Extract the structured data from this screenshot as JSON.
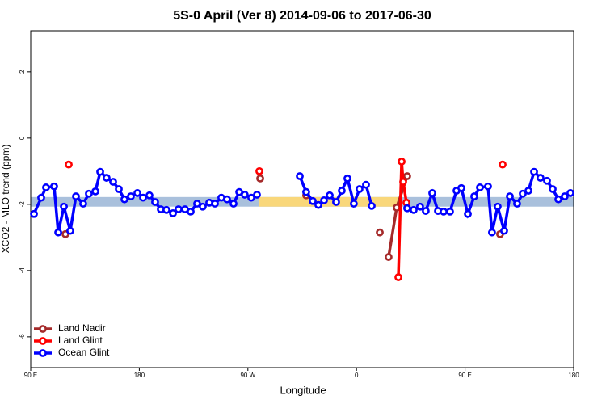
{
  "chart_data": {
    "type": "line",
    "title": "5S-0 April (Ver 8)   2014-09-06 to 2017-06-30",
    "x_label": "Longitude",
    "y_label": "XCO2 - MLO trend (ppm)",
    "xlim": [
      90,
      540
    ],
    "ylim": [
      -6.93,
      3.24
    ],
    "xticks": [
      {
        "value": 90,
        "label": "90 E"
      },
      180,
      {
        "value": 270,
        "label": "90 W"
      },
      {
        "value": 360,
        "label": "0"
      },
      {
        "value": 450,
        "label": "90 E"
      },
      {
        "value": 540,
        "label": "180"
      }
    ],
    "yticks": [
      -6,
      -4,
      -2,
      0,
      2
    ],
    "band": {
      "ylim": [
        -2.07,
        -1.78
      ],
      "color": "#a9c0dc",
      "land_color": "#f9d77a",
      "land_spans": [
        [
          279,
          398
        ]
      ]
    },
    "legend": "bottom-left",
    "series": [
      {
        "name": "Land Nadir",
        "color": "#a52a2a",
        "x": [
          118.8,
          null,
          280.2,
          null,
          318.3,
          null,
          379.3,
          null,
          386.6,
          393.3,
          402.0,
          null,
          479.0
        ],
        "values": [
          -2.9,
          null,
          -1.22,
          null,
          -1.73,
          null,
          -2.85,
          null,
          -3.59,
          -2.1,
          -1.15,
          null,
          -2.9
        ]
      },
      {
        "name": "Land Glint",
        "color": "#ff0000",
        "x": [
          121.5,
          null,
          279.5,
          null,
          394.7,
          397.4,
          398.7,
          401.4,
          null,
          481.1
        ],
        "values": [
          -0.8,
          null,
          -1.0,
          null,
          -4.2,
          -0.71,
          -1.32,
          -1.95,
          null,
          -0.8
        ]
      },
      {
        "name": "Ocean Glint",
        "color": "#0000ff",
        "x": [
          92.7,
          98.7,
          102.7,
          109.4,
          112.8,
          117.5,
          122.8,
          127.5,
          133.5,
          138.2,
          143.6,
          147.6,
          152.9,
          158.3,
          163.0,
          167.7,
          173.0,
          178.4,
          183.1,
          188.4,
          193.1,
          197.8,
          202.5,
          207.9,
          212.5,
          217.9,
          222.6,
          227.9,
          232.6,
          238.0,
          242.7,
          248.0,
          252.7,
          258.1,
          262.8,
          267.4,
          272.8,
          277.5,
          null,
          313.0,
          318.3,
          323.7,
          328.4,
          333.1,
          337.8,
          343.1,
          347.8,
          352.5,
          357.8,
          362.5,
          367.9,
          372.6,
          null,
          402.0,
          407.4,
          412.7,
          417.4,
          422.8,
          427.5,
          432.2,
          437.5,
          442.9,
          446.9,
          452.3,
          457.6,
          462.3,
          469.0,
          472.3,
          477.0,
          482.4,
          487.1,
          493.1,
          497.8,
          502.5,
          507.2,
          512.5,
          517.9,
          522.6,
          527.3,
          532.6,
          537.3
        ],
        "values": [
          -2.29,
          -1.8,
          -1.49,
          -1.46,
          -2.85,
          -2.07,
          -2.8,
          -1.76,
          -1.98,
          -1.68,
          -1.61,
          -1.02,
          -1.2,
          -1.32,
          -1.54,
          -1.85,
          -1.76,
          -1.66,
          -1.8,
          -1.73,
          -1.93,
          -2.15,
          -2.17,
          -2.27,
          -2.15,
          -2.15,
          -2.22,
          -1.98,
          -2.07,
          -1.95,
          -1.98,
          -1.8,
          -1.85,
          -1.98,
          -1.63,
          -1.71,
          -1.8,
          -1.71,
          null,
          -1.15,
          -1.63,
          -1.9,
          -2.02,
          -1.88,
          -1.73,
          -1.93,
          -1.59,
          -1.22,
          -1.98,
          -1.54,
          -1.41,
          -2.05,
          null,
          -2.12,
          -2.17,
          -2.07,
          -2.2,
          -1.66,
          -2.2,
          -2.22,
          -2.22,
          -1.59,
          -1.51,
          -2.29,
          -1.76,
          -1.49,
          -1.46,
          -2.85,
          -2.07,
          -2.8,
          -1.76,
          -1.98,
          -1.68,
          -1.59,
          -1.02,
          -1.2,
          -1.29,
          -1.54,
          -1.85,
          -1.76,
          -1.66
        ]
      }
    ]
  }
}
